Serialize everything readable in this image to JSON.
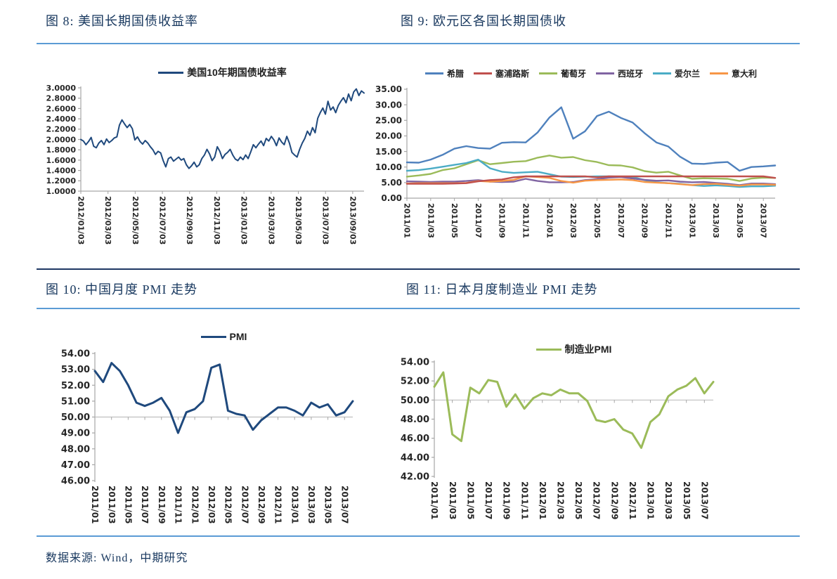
{
  "page": {
    "footer": "数据来源: Wind，中期研究"
  },
  "style": {
    "accent_blue": "#5B9BD5",
    "navy_divider": "#1F3864",
    "title_color": "#17375E",
    "axis_color": "#A6A6A6",
    "tick_label_color": "#262626"
  },
  "chart_data": [
    {
      "type": "line",
      "title": "图 8: 美国长期国债收益率",
      "legend_position": "top",
      "grid": false,
      "ylim": [
        1.0,
        3.0
      ],
      "y_ticks": [
        "3.0000",
        "2.8000",
        "2.6000",
        "2.4000",
        "2.2000",
        "2.0000",
        "1.8000",
        "1.6000",
        "1.4000",
        "1.2000",
        "1.0000"
      ],
      "x_labels": [
        "2012/01/03",
        "2012/03/03",
        "2012/05/03",
        "2012/07/03",
        "2012/09/03",
        "2012/11/03",
        "2013/01/03",
        "2013/03/03",
        "2013/05/03",
        "2013/07/03",
        "2013/09/03"
      ],
      "label_span": 0.96,
      "axis_cross": null,
      "series": [
        {
          "name": "美国10年期国债收益率",
          "color": "#1F497D",
          "values": [
            2.0,
            1.97,
            1.9,
            1.96,
            2.04,
            1.87,
            1.84,
            1.93,
            1.98,
            1.9,
            2.01,
            1.94,
            1.98,
            2.03,
            2.05,
            2.28,
            2.38,
            2.3,
            2.23,
            2.29,
            2.21,
            1.99,
            2.05,
            1.96,
            1.91,
            1.98,
            1.93,
            1.86,
            1.8,
            1.71,
            1.77,
            1.74,
            1.59,
            1.47,
            1.63,
            1.66,
            1.58,
            1.62,
            1.66,
            1.6,
            1.63,
            1.51,
            1.44,
            1.49,
            1.56,
            1.47,
            1.51,
            1.63,
            1.7,
            1.81,
            1.72,
            1.59,
            1.66,
            1.86,
            1.77,
            1.63,
            1.71,
            1.75,
            1.81,
            1.7,
            1.62,
            1.59,
            1.66,
            1.61,
            1.7,
            1.63,
            1.76,
            1.9,
            1.84,
            1.91,
            1.97,
            1.88,
            2.02,
            1.97,
            2.06,
            1.99,
            1.88,
            2.03,
            1.95,
            1.9,
            2.06,
            1.93,
            1.75,
            1.7,
            1.66,
            1.81,
            1.93,
            2.02,
            2.16,
            2.08,
            2.23,
            2.13,
            2.41,
            2.52,
            2.61,
            2.49,
            2.74,
            2.57,
            2.63,
            2.52,
            2.66,
            2.74,
            2.81,
            2.71,
            2.88,
            2.75,
            2.92,
            2.98,
            2.85,
            2.94,
            2.9
          ]
        }
      ]
    },
    {
      "type": "line",
      "title": "图 9: 欧元区各国长期国债收",
      "legend_position": "top",
      "grid": false,
      "ylim": [
        0,
        35
      ],
      "y_ticks": [
        "35.00",
        "30.00",
        "25.00",
        "20.00",
        "15.00",
        "10.00",
        "5.00",
        "0.00"
      ],
      "x_labels": [
        "2011/01",
        "2011/03",
        "2011/05",
        "2011/07",
        "2011/09",
        "2011/11",
        "2012/01",
        "2012/03",
        "2012/05",
        "2012/07",
        "2012/09",
        "2012/11",
        "2013/01",
        "2013/03",
        "2013/05",
        "2013/07"
      ],
      "label_span": 0.968,
      "axis_cross": null,
      "series": [
        {
          "name": "希腊",
          "color": "#4F81BD",
          "values": [
            11.5,
            11.4,
            12.4,
            13.9,
            15.9,
            16.7,
            16.1,
            15.9,
            17.8,
            18.0,
            17.9,
            21.1,
            25.9,
            29.2,
            19.1,
            21.5,
            26.4,
            27.8,
            25.8,
            24.3,
            20.9,
            17.9,
            16.6,
            13.3,
            11.1,
            11.0,
            11.4,
            11.6,
            8.8,
            10.0,
            10.2,
            10.5
          ]
        },
        {
          "name": "塞浦路斯",
          "color": "#C0504D",
          "values": [
            4.6,
            4.6,
            4.6,
            4.6,
            4.7,
            4.8,
            5.4,
            5.8,
            6.0,
            6.7,
            7.0,
            7.0,
            7.0,
            7.0,
            7.0,
            7.0,
            6.7,
            7.0,
            7.0,
            7.0,
            7.0,
            7.0,
            7.0,
            7.0,
            7.0,
            7.0,
            7.0,
            7.0,
            7.0,
            7.0,
            7.0,
            6.5
          ]
        },
        {
          "name": "葡萄牙",
          "color": "#9BBB59",
          "values": [
            6.9,
            7.3,
            7.8,
            9.0,
            9.6,
            10.9,
            12.2,
            10.9,
            11.3,
            11.7,
            11.9,
            13.0,
            13.7,
            13.0,
            13.2,
            12.2,
            11.6,
            10.6,
            10.5,
            9.9,
            8.7,
            8.2,
            8.5,
            7.3,
            6.2,
            6.4,
            6.3,
            6.2,
            5.5,
            6.3,
            6.6,
            6.5
          ]
        },
        {
          "name": "西班牙",
          "color": "#8064A2",
          "values": [
            5.4,
            5.3,
            5.2,
            5.3,
            5.3,
            5.5,
            5.8,
            5.3,
            5.2,
            5.3,
            6.2,
            5.5,
            5.1,
            5.1,
            5.2,
            5.8,
            6.1,
            6.6,
            6.8,
            6.3,
            5.9,
            5.6,
            5.7,
            5.3,
            5.1,
            5.2,
            4.9,
            4.6,
            4.2,
            4.7,
            4.7,
            4.5
          ]
        },
        {
          "name": "爱尔兰",
          "color": "#4BACC6",
          "values": [
            8.8,
            9.0,
            9.5,
            10.1,
            10.7,
            11.3,
            12.4,
            9.6,
            8.5,
            8.1,
            8.3,
            8.5,
            7.7,
            6.9,
            6.8,
            6.9,
            7.0,
            7.0,
            6.9,
            6.8,
            5.8,
            5.1,
            4.8,
            4.6,
            4.2,
            3.9,
            4.1,
            3.9,
            3.6,
            3.8,
            3.8,
            4.0
          ]
        },
        {
          "name": "意大利",
          "color": "#F79646",
          "values": [
            4.7,
            4.8,
            4.8,
            4.8,
            4.8,
            4.9,
            5.5,
            5.3,
            5.5,
            5.9,
            7.0,
            6.8,
            6.5,
            5.5,
            5.0,
            5.6,
            5.8,
            5.9,
            6.0,
            5.8,
            5.2,
            5.0,
            4.8,
            4.5,
            4.2,
            4.5,
            4.6,
            4.3,
            4.0,
            4.4,
            4.4,
            4.3
          ]
        }
      ]
    },
    {
      "type": "line",
      "title": "图 10: 中国月度 PMI 走势",
      "legend_position": "top",
      "grid": false,
      "ylim": [
        46,
        54
      ],
      "y_ticks": [
        "54.00",
        "53.00",
        "52.00",
        "51.00",
        "50.00",
        "49.00",
        "48.00",
        "47.00",
        "46.00"
      ],
      "x_labels": [
        "2011/01",
        "2011/03",
        "2011/05",
        "2011/07",
        "2011/09",
        "2011/11",
        "2012/01",
        "2012/03",
        "2012/05",
        "2012/07",
        "2012/09",
        "2012/11",
        "2013/01",
        "2013/03",
        "2013/05",
        "2013/07"
      ],
      "label_span": 0.968,
      "axis_cross": 50,
      "series": [
        {
          "name": "PMI",
          "color": "#1F497D",
          "values": [
            52.9,
            52.2,
            53.4,
            52.9,
            52.0,
            50.9,
            50.7,
            50.9,
            51.2,
            50.4,
            49.0,
            50.3,
            50.5,
            51.0,
            53.1,
            53.3,
            50.4,
            50.2,
            50.1,
            49.2,
            49.8,
            50.2,
            50.6,
            50.6,
            50.4,
            50.1,
            50.9,
            50.6,
            50.8,
            50.1,
            50.3,
            51.0
          ]
        }
      ]
    },
    {
      "type": "line",
      "title": "图 11: 日本月度制造业 PMI 走势",
      "legend_position": "top",
      "grid": false,
      "ylim": [
        42,
        54
      ],
      "y_ticks": [
        "54.00",
        "52.00",
        "50.00",
        "48.00",
        "46.00",
        "44.00",
        "42.00"
      ],
      "x_labels": [
        "2011/01",
        "2011/03",
        "2011/05",
        "2011/07",
        "2011/09",
        "2011/11",
        "2012/01",
        "2012/03",
        "2012/05",
        "2012/07",
        "2012/09",
        "2012/11",
        "2013/01",
        "2013/03",
        "2013/05",
        "2013/07"
      ],
      "label_span": 0.968,
      "axis_cross": 50,
      "series": [
        {
          "name": "制造业PMI",
          "color": "#9BBB59",
          "values": [
            51.4,
            52.9,
            46.4,
            45.7,
            51.3,
            50.7,
            52.1,
            51.9,
            49.3,
            50.6,
            49.1,
            50.2,
            50.7,
            50.5,
            51.1,
            50.7,
            50.7,
            49.9,
            47.9,
            47.7,
            48.0,
            46.9,
            46.5,
            45.0,
            47.7,
            48.5,
            50.4,
            51.1,
            51.5,
            52.3,
            50.7,
            51.9
          ]
        }
      ]
    }
  ]
}
